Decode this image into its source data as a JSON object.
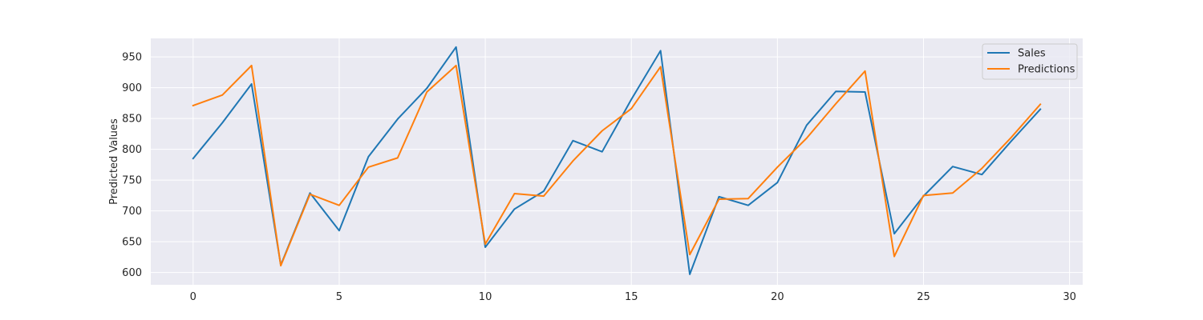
{
  "chart_data": {
    "type": "line",
    "title": "",
    "xlabel": "",
    "ylabel": "Predicted Values",
    "xlim": [
      -1.45,
      30.45
    ],
    "ylim": [
      580,
      980
    ],
    "xticks": [
      0,
      5,
      10,
      15,
      20,
      25,
      30
    ],
    "yticks": [
      600,
      650,
      700,
      750,
      800,
      850,
      900,
      950
    ],
    "grid": true,
    "legend": "top-right",
    "x": [
      0,
      1,
      2,
      3,
      4,
      5,
      6,
      7,
      8,
      9,
      10,
      11,
      12,
      13,
      14,
      15,
      16,
      17,
      18,
      19,
      20,
      21,
      22,
      23,
      24,
      25,
      26,
      27,
      28,
      29
    ],
    "series": [
      {
        "name": "Sales",
        "color": "#1f77b4",
        "values": [
          785,
          843,
          906,
          612,
          729,
          668,
          788,
          849,
          899,
          966,
          641,
          703,
          732,
          814,
          796,
          881,
          960,
          597,
          723,
          709,
          746,
          839,
          894,
          893,
          663,
          724,
          772,
          759,
          813,
          865
        ]
      },
      {
        "name": "Predictions",
        "color": "#ff7f0e",
        "values": [
          871,
          888,
          936,
          611,
          727,
          709,
          771,
          786,
          893,
          936,
          646,
          728,
          724,
          781,
          830,
          866,
          934,
          629,
          719,
          720,
          771,
          818,
          874,
          927,
          626,
          725,
          729,
          769,
          819,
          873
        ]
      }
    ]
  }
}
